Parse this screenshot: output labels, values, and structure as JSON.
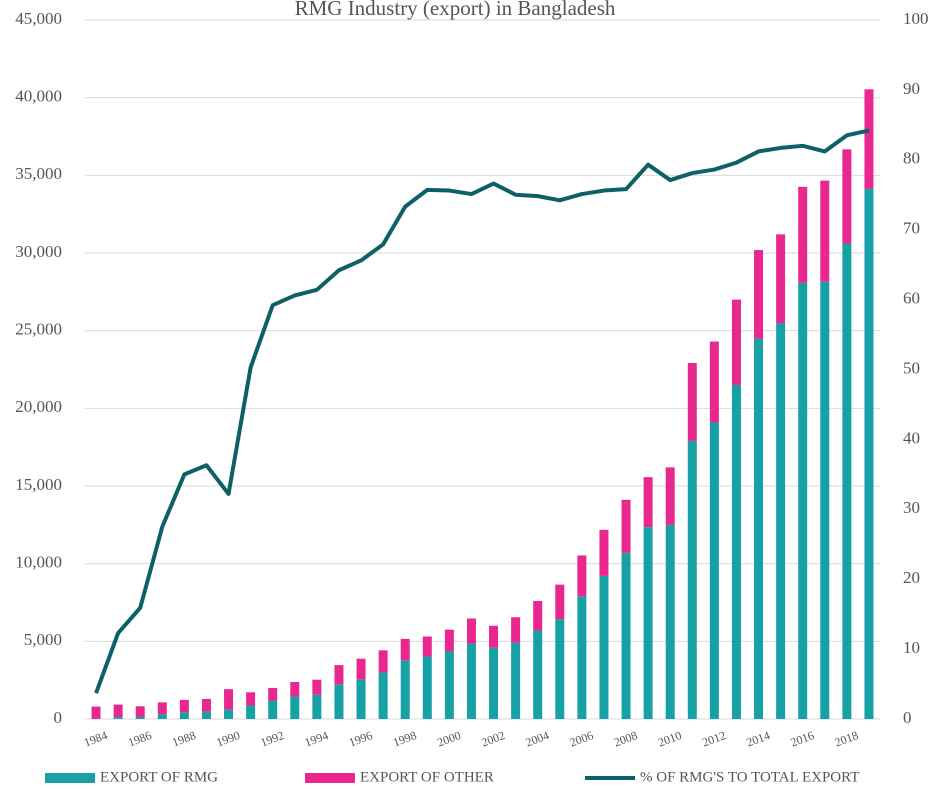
{
  "chart_data": {
    "type": "bar_line",
    "title": "RMG Industry (export) in Bangladesh",
    "categories": [
      "1984",
      null,
      "1986",
      null,
      "1988",
      null,
      "1990",
      null,
      "1992",
      null,
      "1994",
      null,
      "1996",
      null,
      "1998",
      null,
      "2000",
      null,
      "2002",
      null,
      "2004",
      null,
      "2006",
      null,
      "2008",
      null,
      "2010",
      null,
      "2012",
      null,
      "2014",
      null,
      "2016",
      null,
      "2018",
      null
    ],
    "series": [
      {
        "name": "EXPORT OF RMG",
        "color": "#17a0a6",
        "stack": true,
        "values": [
          30,
          120,
          130,
          300,
          430,
          470,
          620,
          870,
          1180,
          1440,
          1560,
          2230,
          2550,
          3000,
          3780,
          4020,
          4350,
          4860,
          4580,
          4910,
          5690,
          6420,
          7900,
          9210,
          10700,
          12350,
          12500,
          17900,
          19090,
          21500,
          24490,
          25490,
          28090,
          28150,
          30610,
          34130
        ]
      },
      {
        "name": "EXPORT OF OTHER",
        "color": "#e8288f",
        "stack": true,
        "values": [
          770,
          810,
          690,
          770,
          800,
          820,
          1300,
          850,
          820,
          940,
          970,
          1240,
          1330,
          1420,
          1380,
          1290,
          1400,
          1610,
          1420,
          1640,
          1910,
          2230,
          2630,
          2970,
          3410,
          3220,
          3700,
          5020,
          5210,
          5500,
          5700,
          5710,
          6170,
          6510,
          6060,
          6410
        ]
      },
      {
        "name": "% OF RMG'S TO TOTAL EXPORT",
        "color": "#0d6166",
        "axis": "y2",
        "values": [
          3.7,
          12.3,
          15.9,
          27.5,
          35,
          36.3,
          32.2,
          50.3,
          59.2,
          60.6,
          61.4,
          64.2,
          65.6,
          67.9,
          73.3,
          75.7,
          75.6,
          75.1,
          76.6,
          75.0,
          74.8,
          74.2,
          75.1,
          75.6,
          75.8,
          79.3,
          77.1,
          78.1,
          78.6,
          79.6,
          81.2,
          81.7,
          82.0,
          81.2,
          83.5,
          84.2
        ]
      }
    ],
    "ylim": [
      0,
      45000
    ],
    "yticks": [
      0,
      {
        "value": 5000,
        "label": "5,000"
      },
      {
        "value": 10000,
        "label": "10,000"
      },
      {
        "value": 15000,
        "label": "15,000"
      },
      {
        "value": 20000,
        "label": "20,000"
      },
      {
        "value": 25000,
        "label": "25,000"
      },
      {
        "value": 30000,
        "label": "30,000"
      },
      {
        "value": 35000,
        "label": "35,000"
      },
      {
        "value": 40000,
        "label": "40,000"
      },
      {
        "value": 45000,
        "label": "45,000"
      }
    ],
    "y2lim": [
      0,
      100
    ],
    "y2ticks": [
      0,
      10,
      20,
      30,
      40,
      50,
      60,
      70,
      80,
      90,
      100
    ],
    "grid": true,
    "legend": "bottom"
  }
}
